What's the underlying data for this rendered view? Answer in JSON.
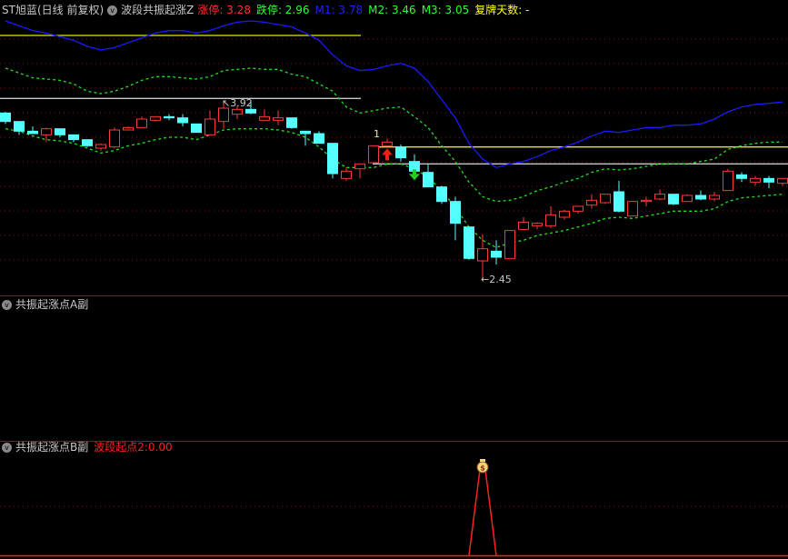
{
  "main_panel": {
    "stock_name": "ST旭蓝(日线 前复权)",
    "indicator_name": "波段共振起涨Z",
    "values": [
      {
        "label": "涨停:",
        "value": "3.28",
        "color": "#ff3030"
      },
      {
        "label": "跌停:",
        "value": "2.96",
        "color": "#30ff30"
      },
      {
        "label": "M1:",
        "value": "3.78",
        "color": "#2020ff"
      },
      {
        "label": "M2:",
        "value": "3.46",
        "color": "#30ff30"
      },
      {
        "label": "M3:",
        "value": "3.05",
        "color": "#30ff30"
      },
      {
        "label": "复牌天数:",
        "value": "-",
        "color": "#ffff00"
      }
    ],
    "high_label": "3.92",
    "low_label": "2.45",
    "signal_label": "1"
  },
  "panel_a": {
    "title": "共振起涨点A副"
  },
  "panel_b": {
    "title": "共振起涨点B副",
    "value_label": "波段起点2:",
    "value": "0.00",
    "color": "#ff2020"
  },
  "colors": {
    "up": "#ff3838",
    "down": "#54ffff",
    "m1": "#1a1aff",
    "band": "#22dd22",
    "grid": "#8a1010",
    "level_yellow": "#e8e800",
    "level_white": "#c8c8c8"
  },
  "icons": {
    "collapse": "chevron-down-circle-icon",
    "buy": "red-up-arrow-icon",
    "sell": "green-down-arrow-icon",
    "signal": "money-bag-icon"
  },
  "chart_data": {
    "type": "candlestick",
    "candles": [
      [
        3.82,
        3.83,
        3.73,
        3.75
      ],
      [
        3.75,
        3.75,
        3.64,
        3.67
      ],
      [
        3.67,
        3.71,
        3.65,
        3.65
      ],
      [
        3.64,
        3.7,
        3.58,
        3.69
      ],
      [
        3.69,
        3.69,
        3.62,
        3.64
      ],
      [
        3.64,
        3.64,
        3.58,
        3.6
      ],
      [
        3.6,
        3.6,
        3.54,
        3.55
      ],
      [
        3.53,
        3.57,
        3.51,
        3.56
      ],
      [
        3.54,
        3.7,
        3.53,
        3.68
      ],
      [
        3.68,
        3.71,
        3.68,
        3.7
      ],
      [
        3.7,
        3.79,
        3.7,
        3.77
      ],
      [
        3.76,
        3.79,
        3.75,
        3.79
      ],
      [
        3.79,
        3.81,
        3.76,
        3.78
      ],
      [
        3.78,
        3.81,
        3.71,
        3.74
      ],
      [
        3.73,
        3.73,
        3.66,
        3.66
      ],
      [
        3.64,
        3.84,
        3.64,
        3.77
      ],
      [
        3.75,
        3.92,
        3.69,
        3.86
      ],
      [
        3.81,
        3.88,
        3.77,
        3.85
      ],
      [
        3.85,
        3.91,
        3.81,
        3.82
      ],
      [
        3.76,
        3.85,
        3.76,
        3.79
      ],
      [
        3.76,
        3.84,
        3.72,
        3.78
      ],
      [
        3.78,
        3.78,
        3.69,
        3.7
      ],
      [
        3.67,
        3.67,
        3.55,
        3.65
      ],
      [
        3.65,
        3.67,
        3.57,
        3.57
      ],
      [
        3.57,
        3.57,
        3.28,
        3.32
      ],
      [
        3.28,
        3.37,
        3.26,
        3.34
      ],
      [
        3.36,
        3.4,
        3.28,
        3.4
      ],
      [
        3.41,
        3.55,
        3.41,
        3.55
      ],
      [
        3.55,
        3.61,
        3.55,
        3.58
      ],
      [
        3.54,
        3.56,
        3.42,
        3.45
      ],
      [
        3.42,
        3.48,
        3.34,
        3.34
      ],
      [
        3.33,
        3.4,
        3.21,
        3.21
      ],
      [
        3.21,
        3.22,
        3.07,
        3.09
      ],
      [
        3.09,
        3.13,
        2.77,
        2.91
      ],
      [
        2.88,
        2.88,
        2.61,
        2.62
      ],
      [
        2.6,
        2.82,
        2.45,
        2.7
      ],
      [
        2.68,
        2.77,
        2.57,
        2.63
      ],
      [
        2.62,
        2.85,
        2.62,
        2.85
      ],
      [
        2.86,
        2.96,
        2.86,
        2.92
      ],
      [
        2.89,
        2.92,
        2.86,
        2.91
      ],
      [
        2.89,
        3.05,
        2.87,
        2.98
      ],
      [
        2.96,
        3.02,
        2.94,
        3.01
      ],
      [
        3.01,
        3.05,
        2.99,
        3.05
      ],
      [
        3.06,
        3.15,
        3.03,
        3.1
      ],
      [
        3.08,
        3.15,
        3.07,
        3.15
      ],
      [
        3.17,
        3.26,
        3.0,
        3.01
      ],
      [
        2.97,
        3.09,
        2.97,
        3.09
      ],
      [
        3.09,
        3.13,
        3.05,
        3.1
      ],
      [
        3.11,
        3.19,
        3.1,
        3.15
      ],
      [
        3.15,
        3.15,
        3.06,
        3.07
      ],
      [
        3.09,
        3.15,
        3.09,
        3.14
      ],
      [
        3.14,
        3.18,
        3.1,
        3.11
      ],
      [
        3.11,
        3.17,
        3.09,
        3.14
      ],
      [
        3.18,
        3.36,
        3.18,
        3.34
      ],
      [
        3.31,
        3.33,
        3.25,
        3.28
      ],
      [
        3.25,
        3.3,
        3.22,
        3.28
      ],
      [
        3.28,
        3.3,
        3.2,
        3.25
      ],
      [
        3.24,
        3.28,
        3.22,
        3.28
      ]
    ],
    "candle_fields": [
      "open",
      "high",
      "low",
      "close"
    ],
    "m1_line": [
      4.58,
      4.54,
      4.5,
      4.48,
      4.45,
      4.42,
      4.37,
      4.34,
      4.36,
      4.4,
      4.44,
      4.48,
      4.5,
      4.5,
      4.48,
      4.5,
      4.54,
      4.57,
      4.58,
      4.57,
      4.55,
      4.53,
      4.48,
      4.42,
      4.3,
      4.21,
      4.17,
      4.18,
      4.21,
      4.23,
      4.19,
      4.08,
      3.93,
      3.78,
      3.57,
      3.44,
      3.37,
      3.4,
      3.42,
      3.46,
      3.51,
      3.54,
      3.58,
      3.63,
      3.67,
      3.66,
      3.68,
      3.7,
      3.7,
      3.72,
      3.72,
      3.73,
      3.77,
      3.83,
      3.87,
      3.89,
      3.9,
      3.91
    ],
    "upper_band": [
      4.19,
      4.15,
      4.11,
      4.1,
      4.09,
      4.06,
      4.0,
      3.98,
      4.0,
      4.04,
      4.09,
      4.12,
      4.12,
      4.11,
      4.1,
      4.12,
      4.17,
      4.18,
      4.19,
      4.18,
      4.18,
      4.14,
      4.12,
      4.06,
      4.0,
      3.87,
      3.82,
      3.84,
      3.86,
      3.87,
      3.79,
      3.7,
      3.55,
      3.42,
      3.25,
      3.13,
      3.09,
      3.1,
      3.13,
      3.18,
      3.21,
      3.25,
      3.28,
      3.33,
      3.36,
      3.35,
      3.36,
      3.38,
      3.4,
      3.4,
      3.4,
      3.42,
      3.44,
      3.52,
      3.55,
      3.57,
      3.58,
      3.58
    ],
    "lower_band": [
      3.69,
      3.67,
      3.63,
      3.6,
      3.59,
      3.57,
      3.53,
      3.49,
      3.51,
      3.55,
      3.57,
      3.6,
      3.62,
      3.62,
      3.6,
      3.64,
      3.68,
      3.69,
      3.69,
      3.69,
      3.68,
      3.66,
      3.62,
      3.54,
      3.44,
      3.37,
      3.37,
      3.37,
      3.4,
      3.4,
      3.36,
      3.29,
      3.18,
      3.04,
      2.88,
      2.77,
      2.71,
      2.75,
      2.77,
      2.81,
      2.83,
      2.85,
      2.88,
      2.91,
      2.95,
      2.96,
      2.95,
      2.97,
      2.99,
      3.01,
      3.01,
      3.01,
      3.03,
      3.09,
      3.12,
      3.13,
      3.14,
      3.15
    ],
    "levels": [
      {
        "price": 4.46,
        "color": "level_yellow",
        "from": 0,
        "to": 26
      },
      {
        "price": 3.94,
        "color": "level_white",
        "from": 0,
        "to": 26
      },
      {
        "price": 3.54,
        "color": "level_yellow",
        "from": 27,
        "to": 57
      },
      {
        "price": 3.4,
        "color": "level_white",
        "from": 27,
        "to": 57
      }
    ],
    "buy_signal_index": 28,
    "sell_signal_index": 30,
    "high_index": 16,
    "low_index": 35,
    "panel_b_spike_index": 35
  }
}
